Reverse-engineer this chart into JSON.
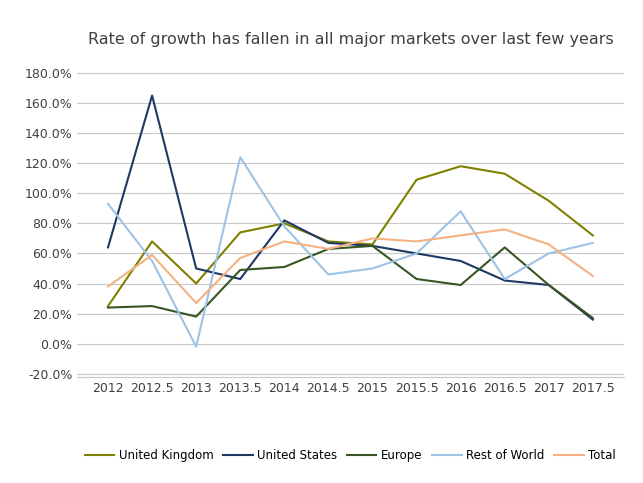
{
  "title": "Rate of growth has fallen in all major markets over last few years",
  "x_labels": [
    2012,
    2012.5,
    2013,
    2013.5,
    2014,
    2014.5,
    2015,
    2015.5,
    2016,
    2016.5,
    2017,
    2017.5
  ],
  "series": {
    "United Kingdom": {
      "color": "#808000",
      "values": [
        0.25,
        0.68,
        0.4,
        0.74,
        0.8,
        0.68,
        0.66,
        1.09,
        1.18,
        1.13,
        0.95,
        0.72
      ]
    },
    "United States": {
      "color": "#1F3864",
      "values": [
        0.64,
        1.65,
        0.5,
        0.43,
        0.82,
        0.67,
        0.65,
        0.6,
        0.55,
        0.42,
        0.39,
        0.16
      ]
    },
    "Europe": {
      "color": "#375623",
      "values": [
        0.24,
        0.25,
        0.18,
        0.49,
        0.51,
        0.63,
        0.65,
        0.43,
        0.39,
        0.64,
        0.39,
        0.17
      ]
    },
    "Rest of World": {
      "color": "#9DC3E6",
      "values": [
        0.93,
        0.55,
        -0.02,
        1.24,
        0.78,
        0.46,
        0.5,
        0.6,
        0.88,
        0.43,
        0.6,
        0.67
      ]
    },
    "Total": {
      "color": "#F4B183",
      "values": [
        0.38,
        0.59,
        0.27,
        0.57,
        0.68,
        0.63,
        0.7,
        0.68,
        0.72,
        0.76,
        0.66,
        0.45
      ]
    }
  },
  "background_color": "#ffffff",
  "grid_color": "#c8c8c8",
  "title_fontsize": 11.5,
  "tick_fontsize": 9,
  "legend_fontsize": 8.5
}
